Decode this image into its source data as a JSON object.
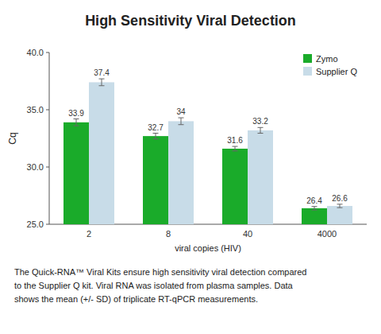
{
  "chart_data": {
    "type": "bar",
    "title": "High Sensitivity Viral Detection",
    "xlabel": "viral copies (HIV)",
    "ylabel": "Cq",
    "categories": [
      "2",
      "8",
      "40",
      "4000"
    ],
    "series": [
      {
        "name": "Zymo",
        "color": "#1aab2a",
        "values": [
          33.9,
          32.7,
          31.6,
          26.4
        ],
        "errors": [
          0.3,
          0.25,
          0.2,
          0.15
        ]
      },
      {
        "name": "Supplier Q",
        "color": "#c8dce8",
        "values": [
          37.4,
          34.0,
          33.2,
          26.6
        ],
        "errors": [
          0.3,
          0.3,
          0.25,
          0.15
        ]
      }
    ],
    "ylim": [
      25.0,
      40.0
    ],
    "yticks": [
      {
        "value": 25.0,
        "label": "25.0"
      },
      {
        "value": 30.0,
        "label": "30.0"
      },
      {
        "value": 35.0,
        "label": "35.0"
      },
      {
        "value": 40.0,
        "label": "40.0"
      }
    ],
    "data_labels": true,
    "legend": "upper right",
    "grid": false,
    "caption": [
      "The Quick-RNA™ Viral Kits ensure high sensitivity viral detection compared",
      "to the Supplier Q kit. Viral RNA was isolated from plasma samples. Data",
      "shows the mean (+/- SD) of triplicate RT-qPCR measurements."
    ]
  }
}
